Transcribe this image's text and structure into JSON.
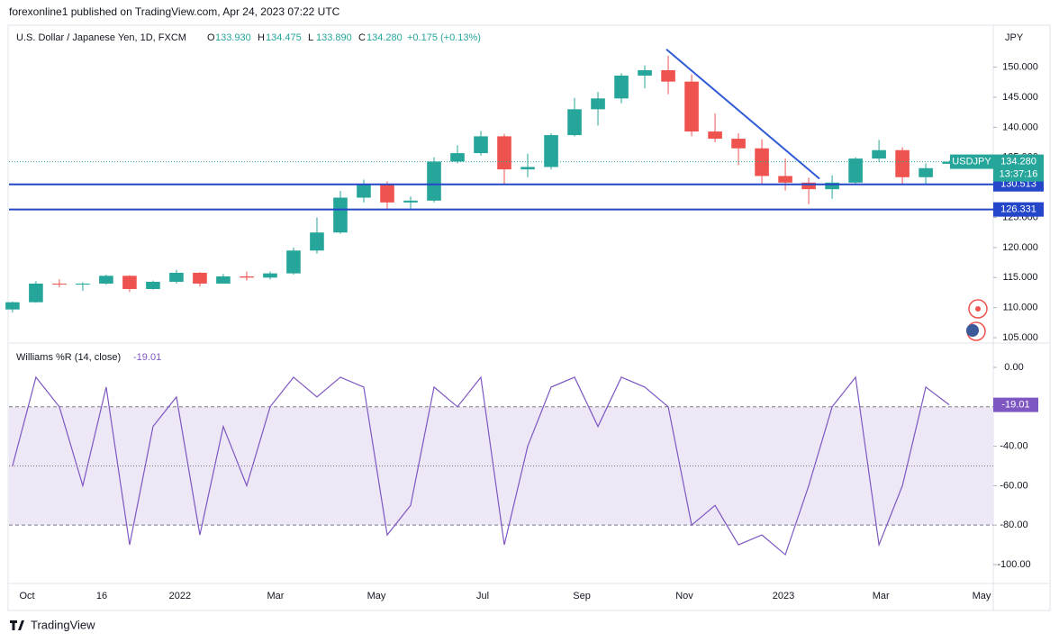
{
  "header": {
    "publisher": "forexonline1 published on TradingView.com, Apr 24, 2023 07:22 UTC",
    "footer": "TradingView"
  },
  "chart_data": [
    {
      "type": "candlestick",
      "title": "U.S. Dollar / Japanese Yen, 1D, FXCM",
      "ohlc_labels": [
        {
          "key": "O",
          "text": "133.930"
        },
        {
          "key": "H",
          "text": "134.475"
        },
        {
          "key": "L",
          "text": "133.890"
        },
        {
          "key": "C",
          "text": "134.280"
        }
      ],
      "change": "+0.175 (+0.13%)",
      "currency": "JPY",
      "symbol": "USDJPY",
      "countdown": "13:37:16",
      "categories": [
        null,
        null,
        null,
        null,
        null,
        null,
        null,
        null,
        null,
        null,
        null,
        null,
        null,
        null,
        null,
        null,
        null,
        null,
        null,
        null,
        null,
        null,
        null,
        null,
        null,
        null,
        null,
        null,
        null,
        null,
        null,
        null,
        null,
        null,
        null,
        null,
        null,
        null,
        null,
        null,
        null
      ],
      "open": [
        109.7,
        110.9,
        114.0,
        113.9,
        114.0,
        115.3,
        113.1,
        114.3,
        115.8,
        114.0,
        115.2,
        115.0,
        115.7,
        119.5,
        122.5,
        128.3,
        130.5,
        127.5,
        127.8,
        134.3,
        135.7,
        138.5,
        133.0,
        133.4,
        138.7,
        143.0,
        144.8,
        148.6,
        149.5,
        147.6,
        139.3,
        138.1,
        136.5,
        131.9,
        130.8,
        129.7,
        130.8,
        134.8,
        136.2,
        131.7,
        133.93
      ],
      "high": [
        111.0,
        114.4,
        114.7,
        114.2,
        115.5,
        115.4,
        114.5,
        116.3,
        115.9,
        115.6,
        116.0,
        116.0,
        120.0,
        125.0,
        129.4,
        131.3,
        131.0,
        128.5,
        135.0,
        137.0,
        139.4,
        138.9,
        135.6,
        139.0,
        144.9,
        145.9,
        149.0,
        150.3,
        151.9,
        148.8,
        142.3,
        139.0,
        138.0,
        134.8,
        131.6,
        132.0,
        135.0,
        137.9,
        136.7,
        134.0,
        134.475
      ],
      "low": [
        109.2,
        110.8,
        113.4,
        112.8,
        113.8,
        112.6,
        113.0,
        114.0,
        113.5,
        114.0,
        114.5,
        114.7,
        115.5,
        119.0,
        122.3,
        127.5,
        126.5,
        126.4,
        127.5,
        134.0,
        135.3,
        130.4,
        131.7,
        133.0,
        138.5,
        140.3,
        144.0,
        146.5,
        145.5,
        138.5,
        137.5,
        133.7,
        130.6,
        129.5,
        127.2,
        128.1,
        130.4,
        134.3,
        130.4,
        130.6,
        133.89
      ],
      "close": [
        110.9,
        114.0,
        113.9,
        114.0,
        115.3,
        113.1,
        114.3,
        115.8,
        114.0,
        115.2,
        115.0,
        115.7,
        119.5,
        122.5,
        128.3,
        130.5,
        127.5,
        127.8,
        134.3,
        135.7,
        138.5,
        133.0,
        133.4,
        138.7,
        143.0,
        144.8,
        148.6,
        149.5,
        147.6,
        139.3,
        138.1,
        136.5,
        131.9,
        130.8,
        129.7,
        130.8,
        134.8,
        136.2,
        131.7,
        133.2,
        134.28
      ],
      "up_color": "#26a69a",
      "down_color": "#ef5350",
      "xlim": [
        -0.15,
        41.88
      ],
      "xticks": [
        {
          "value": 0.62,
          "label": "Oct"
        },
        {
          "value": 3.81,
          "label": "16"
        },
        {
          "value": 7.15,
          "label": "2022"
        },
        {
          "value": 11.23,
          "label": "Mar"
        },
        {
          "value": 15.54,
          "label": "May"
        },
        {
          "value": 20.08,
          "label": "Jul"
        },
        {
          "value": 24.31,
          "label": "Sep"
        },
        {
          "value": 28.69,
          "label": "Nov"
        },
        {
          "value": 32.92,
          "label": "2023"
        },
        {
          "value": 37.08,
          "label": "Mar"
        },
        {
          "value": 41.38,
          "label": "May"
        }
      ],
      "ylim": [
        104.26,
        156.98
      ],
      "yticks": [
        {
          "value": 105,
          "label": "105.000"
        },
        {
          "value": 110,
          "label": "110.000"
        },
        {
          "value": 115,
          "label": "115.000"
        },
        {
          "value": 120,
          "label": "120.000"
        },
        {
          "value": 125,
          "label": "125.000"
        },
        {
          "value": 130,
          "label": "130.000"
        },
        {
          "value": 135,
          "label": "135.000"
        },
        {
          "value": 140,
          "label": "140.000"
        },
        {
          "value": 145,
          "label": "145.000"
        },
        {
          "value": 150,
          "label": "150.000"
        }
      ],
      "hlines": [
        {
          "value": 130.513,
          "label": "130.513"
        },
        {
          "value": 126.331,
          "label": "126.331"
        }
      ],
      "hline_color": "#2447c9",
      "trendline": {
        "x": [
          27.92,
          34.46
        ],
        "y": [
          152.97,
          131.44
        ],
        "color": "#2f5bd6"
      },
      "last_price": {
        "value": 134.28,
        "label": "134.280"
      }
    },
    {
      "type": "line",
      "title": "Williams %R (14, close)",
      "last_value": {
        "value": -19.01,
        "label": "-19.01"
      },
      "categories": [
        null,
        null,
        null,
        null,
        null,
        null,
        null,
        null,
        null,
        null,
        null,
        null,
        null,
        null,
        null,
        null,
        null,
        null,
        null,
        null,
        null,
        null,
        null,
        null,
        null,
        null,
        null,
        null,
        null,
        null,
        null,
        null,
        null,
        null,
        null,
        null,
        null,
        null,
        null,
        null,
        null
      ],
      "values": [
        -50,
        -5,
        -20,
        -60,
        -10,
        -90,
        -30,
        -15,
        -85,
        -30,
        -60,
        -20,
        -5,
        -15,
        -5,
        -10,
        -85,
        -70,
        -10,
        -20,
        -5,
        -90,
        -40,
        -10,
        -5,
        -30,
        -5,
        -10,
        -20,
        -80,
        -70,
        -90,
        -85,
        -95,
        -60,
        -20,
        -5,
        -90,
        -60,
        -10,
        -19.01
      ],
      "color": "#7e57c2",
      "band_fill": "#ede7f6",
      "levels": [
        -20,
        -50,
        -80
      ],
      "xlim": [
        -0.15,
        41.88
      ],
      "ylim": [
        -109.6,
        11.87
      ],
      "yticks": [
        {
          "value": 0,
          "label": "0.00"
        },
        {
          "value": -40,
          "label": "-40.00"
        },
        {
          "value": -60,
          "label": "-60.00"
        },
        {
          "value": -80,
          "label": "-80.00"
        },
        {
          "value": -100,
          "label": "-100.00"
        }
      ]
    }
  ]
}
